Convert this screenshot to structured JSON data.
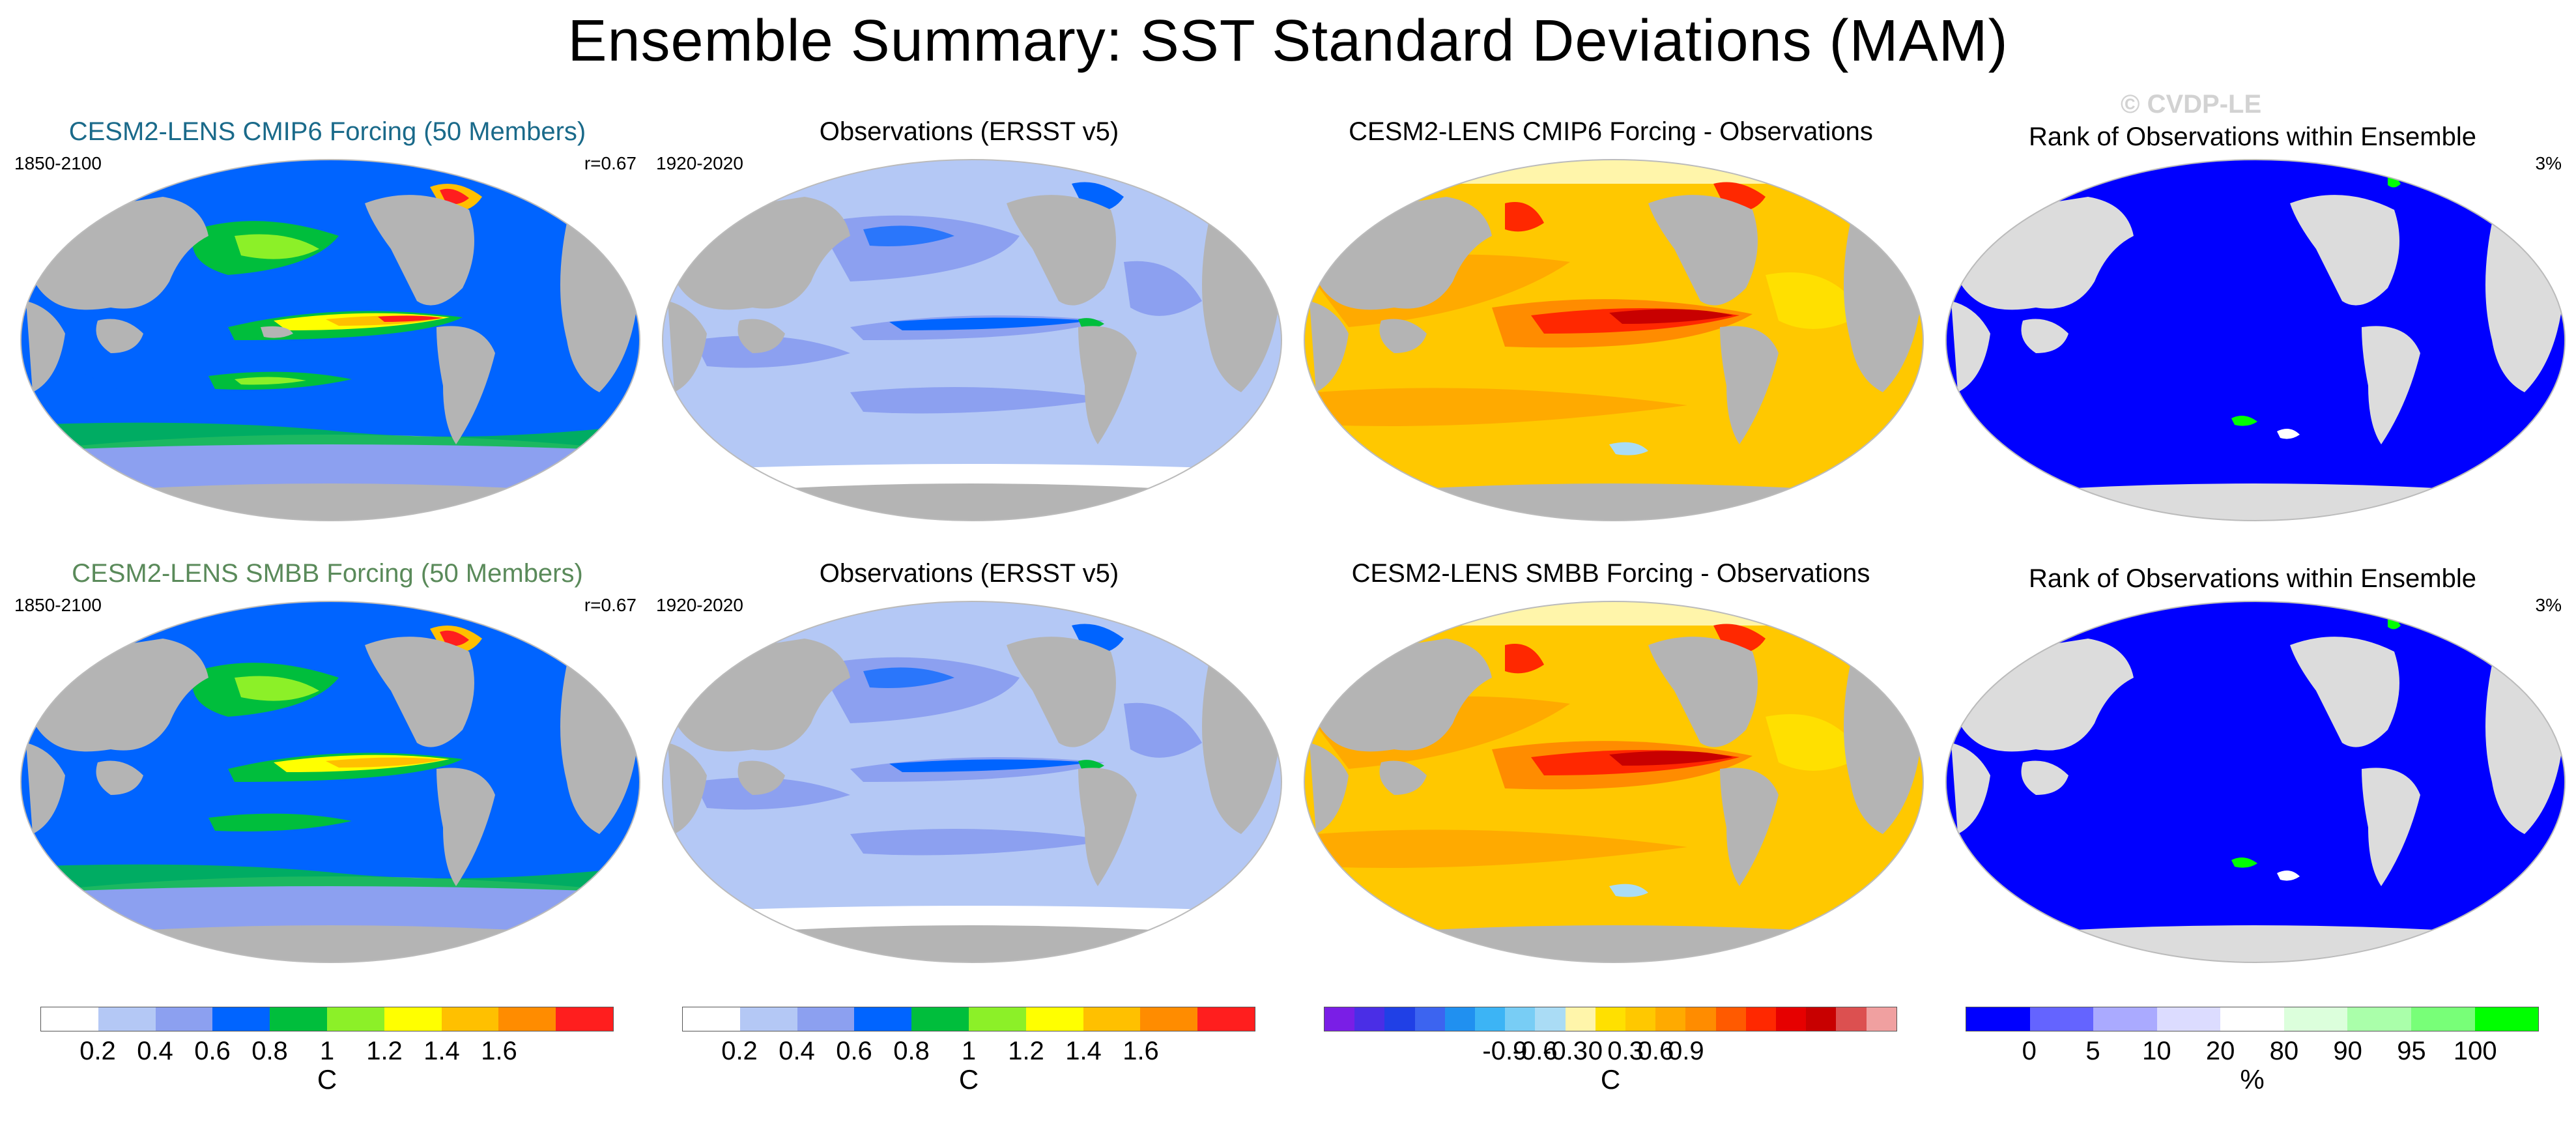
{
  "title": "Ensemble Summary: SST Standard Deviations (MAM)",
  "watermark": "© CVDP-LE",
  "rows": [
    {
      "model_title": "CESM2-LENS CMIP6 Forcing (50 Members)",
      "model_title_color": "#1a6a8a",
      "model_years": "1850-2100",
      "pattern_corr": "r=0.67",
      "obs_title": "Observations (ERSST v5)",
      "obs_years": "1920-2020",
      "diff_title": "CESM2-LENS CMIP6 Forcing - Observations",
      "rank_title": "Rank of Observations within Ensemble",
      "rank_pct": "3%"
    },
    {
      "model_title": "CESM2-LENS SMBB Forcing (50 Members)",
      "model_title_color": "#5a8a5a",
      "model_years": "1850-2100",
      "pattern_corr": "r=0.67",
      "obs_title": "Observations (ERSST v5)",
      "obs_years": "1920-2020",
      "diff_title": "CESM2-LENS SMBB Forcing - Observations",
      "rank_title": "Rank of Observations within Ensemble",
      "rank_pct": "3%"
    }
  ],
  "colorbars": {
    "sst": {
      "colors": [
        "#ffffff",
        "#b4c8f5",
        "#8ca0f0",
        "#0064ff",
        "#00be3c",
        "#8cf028",
        "#ffff00",
        "#ffc000",
        "#ff8c00",
        "#ff1e1e"
      ],
      "labels": [
        "0.2",
        "0.4",
        "0.6",
        "0.8",
        "1",
        "1.2",
        "1.4",
        "1.6"
      ],
      "unit": "C"
    },
    "diff": {
      "colors": [
        "#7a1ee6",
        "#4a2ee6",
        "#2040e6",
        "#3c64f0",
        "#2090f0",
        "#3cb4f5",
        "#78cdf5",
        "#aadcf5",
        "#fff5aa",
        "#ffe000",
        "#ffc800",
        "#ffaa00",
        "#ff8c00",
        "#ff5a00",
        "#ff2800",
        "#e60000",
        "#c80000",
        "#dc5050",
        "#f0a0a0"
      ],
      "labels": [
        "-0.9",
        "-0.6",
        "-0.3",
        "0",
        "0.3",
        "0.6",
        "0.9"
      ],
      "unit": "C"
    },
    "rank": {
      "colors": [
        "#0000ff",
        "#6464ff",
        "#aaaaff",
        "#dcdcff",
        "#ffffff",
        "#dcffdc",
        "#aaffaa",
        "#78ff78",
        "#00ff00"
      ],
      "labels": [
        "0",
        "5",
        "10",
        "20",
        "80",
        "90",
        "95",
        "100"
      ],
      "unit": "%"
    }
  },
  "map_palette": {
    "land": "#b4b4b4",
    "rank_land": "#dcdcdc"
  }
}
